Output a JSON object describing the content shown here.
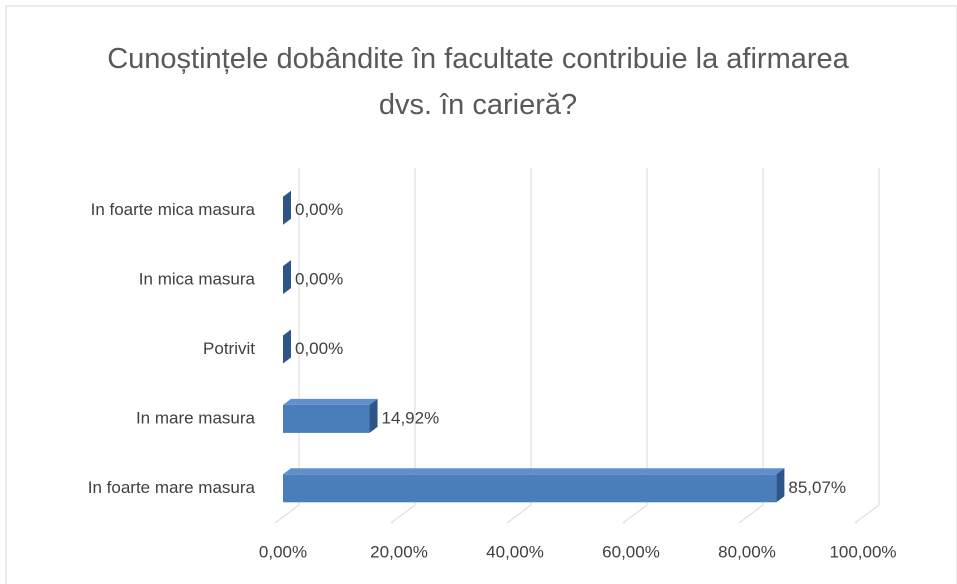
{
  "chart_data": {
    "type": "bar",
    "orientation": "horizontal",
    "title": "Cunoștințele dobândite în facultate contribuie la afirmarea dvs. în carieră?",
    "categories": [
      "In foarte mica masura",
      "In mica masura",
      "Potrivit",
      "In mare masura",
      "In foarte mare masura"
    ],
    "values": [
      0,
      0,
      0,
      14.92,
      85.07
    ],
    "value_labels": [
      "0,00%",
      "0,00%",
      "0,00%",
      "14,92%",
      "85,07%"
    ],
    "color": "#4a7ebb",
    "xlim": [
      0,
      100
    ],
    "xticks": [
      {
        "value": 0,
        "label": "0,00%"
      },
      {
        "value": 20,
        "label": "20,00%"
      },
      {
        "value": 40,
        "label": "40,00%"
      },
      {
        "value": 60,
        "label": "60,00%"
      },
      {
        "value": 80,
        "label": "80,00%"
      },
      {
        "value": 100,
        "label": "100,00%"
      }
    ],
    "grid": true
  }
}
